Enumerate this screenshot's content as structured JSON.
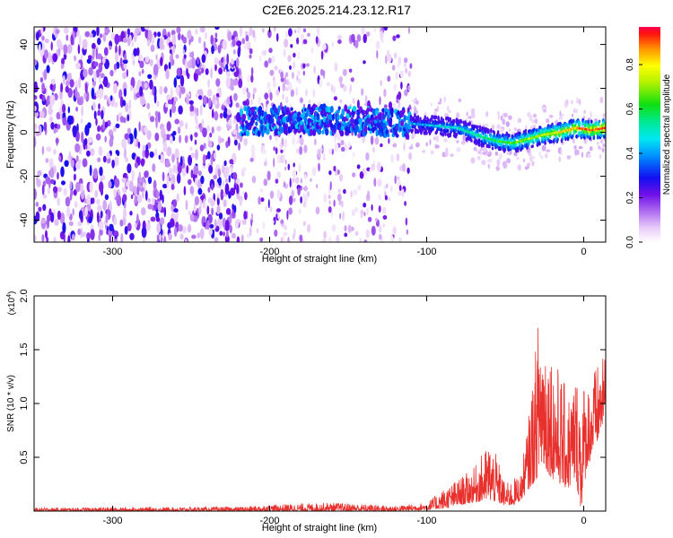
{
  "title": "C2E6.2025.214.23.12.R17",
  "chart_data": [
    {
      "type": "heatmap",
      "xlabel": "Height of straight line (km)",
      "ylabel": "Frequency (Hz)",
      "xlim": [
        -350,
        14
      ],
      "ylim": [
        -50,
        48
      ],
      "xticks": [
        -300,
        -200,
        -100,
        0
      ],
      "yticks": [
        -40,
        -20,
        0,
        20,
        40
      ],
      "colorbar": {
        "label": "Normalized spectral amplitude",
        "range": [
          0,
          0.97
        ],
        "ticks": [
          0.0,
          0.2,
          0.4,
          0.6,
          0.8
        ],
        "tick_labels": [
          "0.0",
          "0.2",
          "0.4",
          "0.6",
          "0.8"
        ],
        "colormap": "white-violet-blue-cyan-green-yellow-red"
      },
      "regions": [
        {
          "x_range": [
            -350,
            -218
          ],
          "description": "broadband noise",
          "amplitude": [
            0.05,
            0.3
          ]
        },
        {
          "x_range": [
            -218,
            -110
          ],
          "description": "sparse noise with signal band near 5 Hz",
          "amplitude": [
            0.03,
            0.25
          ]
        },
        {
          "x_range": [
            -110,
            14
          ],
          "description": "coherent signal band",
          "amplitude": [
            0.2,
            0.97
          ]
        }
      ],
      "signal_band_center": [
        {
          "x": -218,
          "y": 5
        },
        {
          "x": -180,
          "y": 6
        },
        {
          "x": -140,
          "y": 5
        },
        {
          "x": -110,
          "y": 4
        },
        {
          "x": -95,
          "y": 3
        },
        {
          "x": -80,
          "y": 2
        },
        {
          "x": -65,
          "y": -2
        },
        {
          "x": -55,
          "y": -4
        },
        {
          "x": -45,
          "y": -5
        },
        {
          "x": -35,
          "y": -3
        },
        {
          "x": -25,
          "y": -1
        },
        {
          "x": -15,
          "y": 0
        },
        {
          "x": -5,
          "y": 2
        },
        {
          "x": 5,
          "y": 1
        },
        {
          "x": 14,
          "y": 2
        }
      ]
    },
    {
      "type": "line",
      "xlabel": "Height of straight line (km)",
      "ylabel": "SNR (10 * v/v)",
      "y_multiplier_label": "(x10",
      "y_multiplier_exponent": "4",
      "y_multiplier_close": ")",
      "xlim": [
        -350,
        14
      ],
      "ylim": [
        0,
        2.0
      ],
      "xticks": [
        -300,
        -200,
        -100,
        0
      ],
      "yticks": [
        0.5,
        1.0,
        1.5,
        2.0
      ],
      "ytick_labels": [
        "0.5",
        "1.0",
        "1.5",
        "2.0"
      ],
      "color": "#e8302c",
      "envelope": [
        {
          "x": -350,
          "low": 0.0,
          "high": 0.03
        },
        {
          "x": -220,
          "low": 0.0,
          "high": 0.04
        },
        {
          "x": -200,
          "low": 0.0,
          "high": 0.06
        },
        {
          "x": -160,
          "low": 0.0,
          "high": 0.08
        },
        {
          "x": -120,
          "low": 0.0,
          "high": 0.05
        },
        {
          "x": -100,
          "low": 0.01,
          "high": 0.08
        },
        {
          "x": -90,
          "low": 0.02,
          "high": 0.2
        },
        {
          "x": -80,
          "low": 0.05,
          "high": 0.3
        },
        {
          "x": -70,
          "low": 0.08,
          "high": 0.4
        },
        {
          "x": -60,
          "low": 0.1,
          "high": 0.65
        },
        {
          "x": -55,
          "low": 0.08,
          "high": 0.5
        },
        {
          "x": -50,
          "low": 0.05,
          "high": 0.25
        },
        {
          "x": -45,
          "low": 0.05,
          "high": 0.3
        },
        {
          "x": -40,
          "low": 0.1,
          "high": 0.35
        },
        {
          "x": -35,
          "low": 0.2,
          "high": 0.9
        },
        {
          "x": -30,
          "low": 0.3,
          "high": 1.6
        },
        {
          "x": -28,
          "low": 0.4,
          "high": 2.0
        },
        {
          "x": -25,
          "low": 0.4,
          "high": 1.8
        },
        {
          "x": -20,
          "low": 0.3,
          "high": 1.5
        },
        {
          "x": -15,
          "low": 0.25,
          "high": 1.3
        },
        {
          "x": -10,
          "low": 0.2,
          "high": 1.1
        },
        {
          "x": -5,
          "low": 0.3,
          "high": 1.3
        },
        {
          "x": -2,
          "low": 0.0,
          "high": 1.25
        },
        {
          "x": 2,
          "low": 0.4,
          "high": 1.2
        },
        {
          "x": 8,
          "low": 0.6,
          "high": 1.35
        },
        {
          "x": 14,
          "low": 0.9,
          "high": 1.45
        }
      ]
    }
  ]
}
